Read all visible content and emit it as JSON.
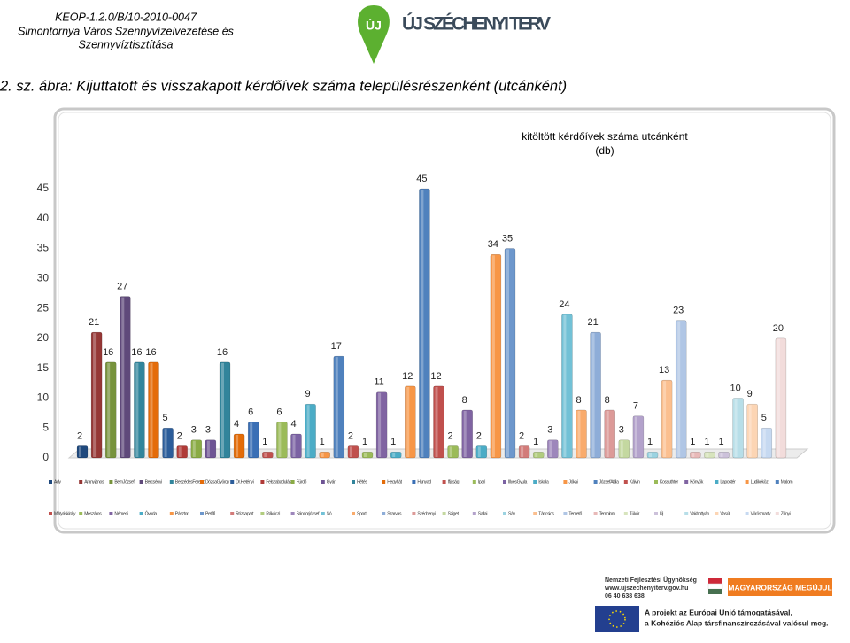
{
  "header": {
    "lines": [
      "KEOP-1.2.0/B/10-2010-0047",
      "Simontornya Város Szennyvízelvezetése és",
      "Szennyvíztisztítása"
    ],
    "logo": "ÚJ SZÉCHENYI TERV",
    "logo_mark": "ÚJ"
  },
  "caption": "2. sz. ábra: Kijuttatott és visszakapott kérdőívek száma településrészenként (utcánként)",
  "chart_data": {
    "type": "bar",
    "title": [
      "kitöltött kérdőívek száma utcánként",
      "(db)"
    ],
    "categories": [
      "Ady",
      "Aranyjános",
      "BemJózsef",
      "Bercsényi",
      "BeszédesFerenc",
      "DózsaGyörgy",
      "Dr.Hetényi",
      "Felszabadulás",
      "Fürdő",
      "Gyár",
      "Hétés",
      "Hegyhát",
      "Hunyad",
      "Ifjúság",
      "Ipari",
      "IllyésGyula",
      "Iskola",
      "Jókai",
      "JózsefAttila",
      "Kálvin",
      "Kossuthtér",
      "Könyök",
      "Lapostér",
      "Ludikéköz",
      "Malom",
      "Mátyáskirály",
      "Mészáros",
      "Némedi",
      "Óvoda",
      "Pásztor",
      "Petőfi",
      "Rózsapart",
      "Rákóczi",
      "Sándorjózsef",
      "Só",
      "Sport",
      "Szarvas",
      "Széchenyi",
      "Sziget",
      "Sallai",
      "Sáv",
      "Táncsics",
      "Temető",
      "Templom",
      "Tükör",
      "Új",
      "Vakbottyán",
      "Vasút",
      "Vörösmarty",
      "Zrínyi"
    ],
    "values": [
      2,
      21,
      16,
      27,
      16,
      16,
      5,
      2,
      3,
      3,
      16,
      4,
      6,
      1,
      6,
      4,
      9,
      1,
      17,
      2,
      1,
      11,
      1,
      12,
      45,
      12,
      2,
      8,
      2,
      34,
      35,
      2,
      1,
      3,
      24,
      8,
      21,
      8,
      3,
      7,
      1,
      13,
      23,
      1,
      1,
      1,
      10,
      9,
      5,
      20
    ],
    "colors": [
      "#1f497d",
      "#953735",
      "#77933c",
      "#5f497a",
      "#31859c",
      "#e46c0a",
      "#2c5d9a",
      "#b03a37",
      "#8aab45",
      "#6e5494",
      "#31849b",
      "#e36c09",
      "#3a6fb5",
      "#c0504d",
      "#9bbb59",
      "#7b62a3",
      "#4bacc6",
      "#f79646",
      "#4f81bd",
      "#c0504d",
      "#9bbb59",
      "#8064a2",
      "#4bacc6",
      "#f79646",
      "#4f81bd",
      "#c0504d",
      "#9bbb59",
      "#8064a2",
      "#4bacc6",
      "#f79646",
      "#6d97cc",
      "#d27b79",
      "#b1cc7e",
      "#9d86bb",
      "#72c1d6",
      "#f9ab6c",
      "#8eadd8",
      "#dc9a98",
      "#c4d8a0",
      "#b3a2cb",
      "#9bd3e1",
      "#fbbf8f",
      "#b0c6e5",
      "#e8b9b8",
      "#d7e4bd",
      "#ccc1da",
      "#b7dee8",
      "#fcd5b4",
      "#c6d9f1",
      "#f2dcdb"
    ],
    "ylim": [
      0,
      45
    ],
    "yticks": [
      0,
      5,
      10,
      15,
      20,
      25,
      30,
      35,
      40,
      45
    ]
  },
  "footer": {
    "agency": "Nemzeti Fejlesztési Ügynökség",
    "url": "www.ujszechenyiterv.gov.hu",
    "phone": "06 40 638 638",
    "banner": "MAGYARORSZÁG MEGÚJUL",
    "lines": [
      "A projekt az Európai Unió támogatásával,",
      "a Kohéziós Alap társfinanszírozásával valósul meg."
    ]
  }
}
